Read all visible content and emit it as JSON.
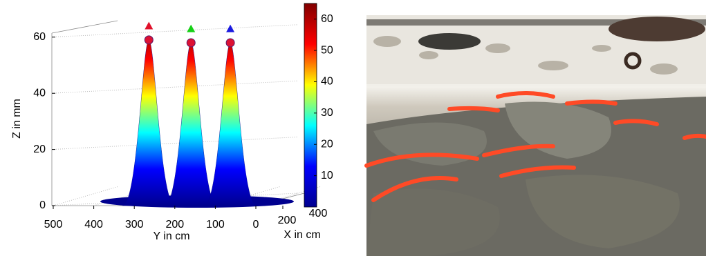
{
  "chart_data": {
    "type": "surface3d",
    "z_label": "Z in mm",
    "y_label": "Y in cm",
    "x_label": "X in cm",
    "zlim": [
      0,
      65
    ],
    "zticks": [
      0,
      20,
      40,
      60
    ],
    "ylim": [
      500,
      0
    ],
    "yticks": [
      500,
      400,
      300,
      200,
      100,
      0
    ],
    "xticks": [
      200,
      400
    ],
    "clim": [
      0,
      65
    ],
    "cticks": [
      10,
      20,
      30,
      40,
      50,
      60
    ],
    "colormap": [
      "#00008f",
      "#0000ff",
      "#00ffff",
      "#ffff00",
      "#ff0000",
      "#800000"
    ],
    "peak_color": "#dd1133",
    "peaks": [
      {
        "y": 264,
        "z": 59,
        "marker_z": 64,
        "color": "#e0102a"
      },
      {
        "y": 160,
        "z": 58,
        "marker_z": 63,
        "color": "#16d016"
      },
      {
        "y": 63,
        "z": 58,
        "marker_z": 63,
        "color": "#1a1ae0"
      }
    ],
    "grid": true
  }
}
